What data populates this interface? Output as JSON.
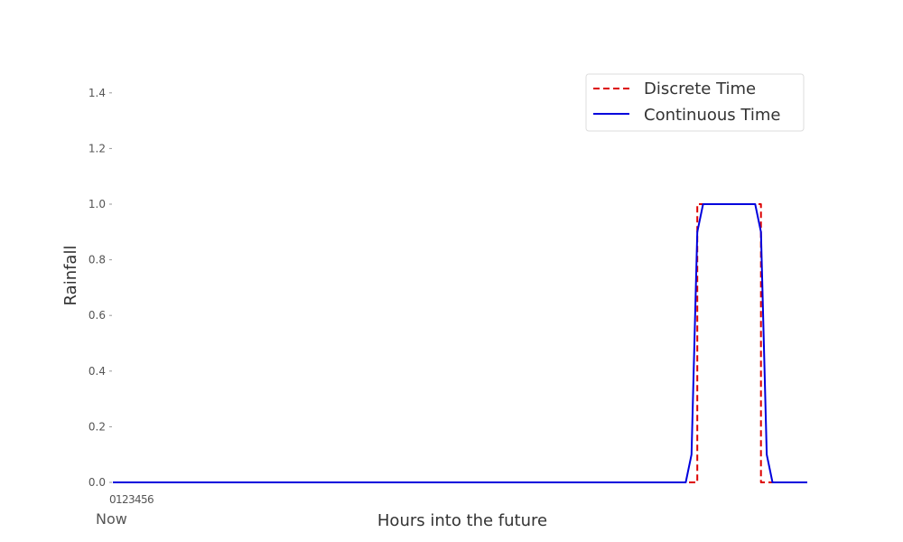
{
  "chart_data": {
    "type": "line",
    "xlabel": "Hours into the future",
    "ylabel": "Rainfall",
    "ylim": [
      0,
      1.5
    ],
    "y_ticks": [
      "0.0",
      "0.2",
      "0.4",
      "0.6",
      "0.8",
      "1.0",
      "1.2",
      "1.4"
    ],
    "x_tick_labels": [
      "0",
      "1",
      "2",
      "3",
      "4",
      "5",
      "6",
      "Now"
    ],
    "grid": false,
    "legend_position": "top-right",
    "series": [
      {
        "name": "Discrete Time",
        "style": "dashed",
        "color": "#dd0000",
        "points": [
          [
            0,
            0
          ],
          [
            202,
            0
          ],
          [
            202,
            1
          ],
          [
            224,
            1
          ],
          [
            224,
            0
          ],
          [
            240,
            0
          ]
        ]
      },
      {
        "name": "Continuous Time",
        "style": "solid",
        "color": "#0000dd",
        "points": [
          [
            0,
            0
          ],
          [
            198,
            0
          ],
          [
            200,
            0.1
          ],
          [
            202,
            0.9
          ],
          [
            204,
            1
          ],
          [
            222,
            1
          ],
          [
            224,
            0.9
          ],
          [
            226,
            0.1
          ],
          [
            228,
            0
          ],
          [
            240,
            0
          ]
        ]
      }
    ]
  }
}
